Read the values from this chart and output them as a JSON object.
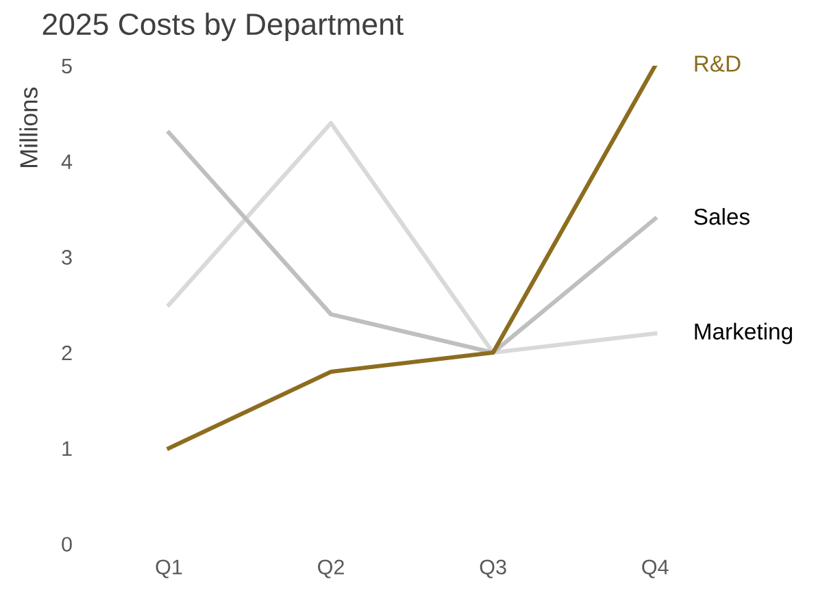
{
  "chart_data": {
    "type": "line",
    "title": "2025 Costs by Department",
    "ylabel": "Millions",
    "categories": [
      "Q1",
      "Q2",
      "Q3",
      "Q4"
    ],
    "series": [
      {
        "name": "Marketing",
        "color": "#d9d9d9",
        "values": [
          2.5,
          4.4,
          2.0,
          2.2
        ]
      },
      {
        "name": "Sales",
        "color": "#bfbfbf",
        "values": [
          4.3,
          2.4,
          2.0,
          3.4
        ]
      },
      {
        "name": "R&D",
        "color": "#8c6d1f",
        "values": [
          1.0,
          1.8,
          2.0,
          5.0
        ]
      }
    ],
    "ylim": [
      0,
      5
    ],
    "yticks": [
      0,
      1,
      2,
      3,
      4,
      5
    ],
    "grid": false,
    "legend": false,
    "marker": "none",
    "line_style": "solid"
  }
}
